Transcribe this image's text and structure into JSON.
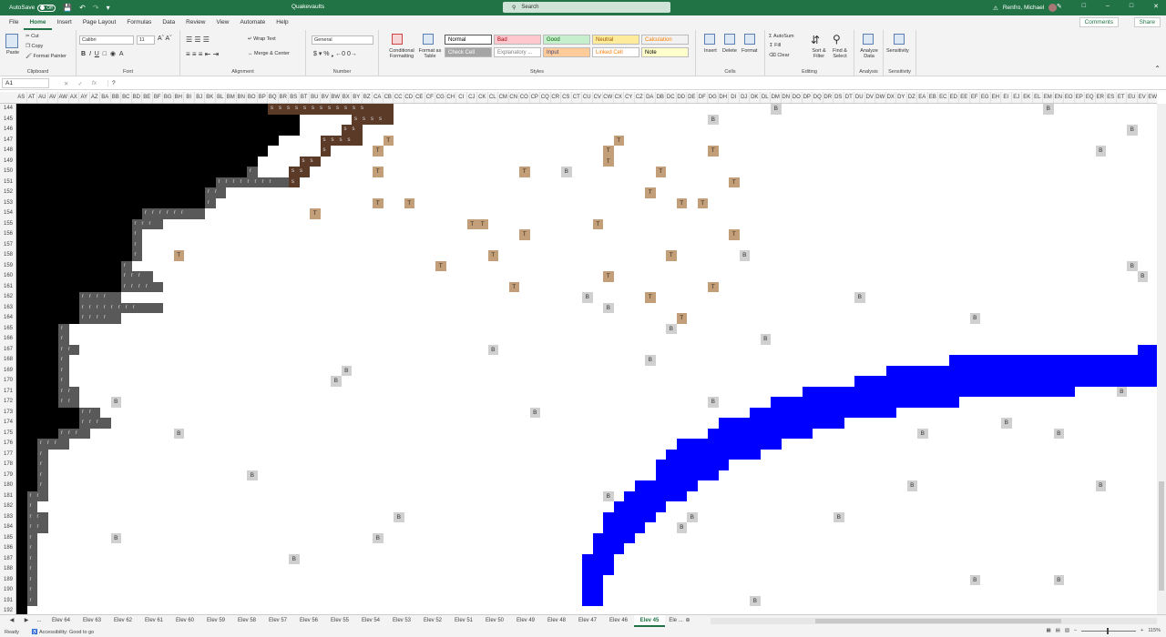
{
  "titlebar": {
    "autosave_label": "AutoSave",
    "autosave_state": "Off",
    "doc_title": "Quakevaults",
    "search_placeholder": "Search",
    "user_name": "Renfro, Michael"
  },
  "tabs": [
    "File",
    "Home",
    "Insert",
    "Page Layout",
    "Formulas",
    "Data",
    "Review",
    "View",
    "Automate",
    "Help"
  ],
  "active_tab": "Home",
  "ribbon_actions": {
    "comments": "Comments",
    "share": "Share"
  },
  "ribbon": {
    "clipboard": {
      "label": "Clipboard",
      "paste": "Paste",
      "cut": "Cut",
      "copy": "Copy",
      "format_painter": "Format Painter"
    },
    "font": {
      "label": "Font",
      "name": "Calibri",
      "size": "11"
    },
    "alignment": {
      "label": "Alignment",
      "wrap": "Wrap Text",
      "merge": "Merge & Center"
    },
    "number": {
      "label": "Number",
      "format": "General"
    },
    "styles": {
      "label": "Styles",
      "conditional": "Conditional Formatting",
      "format_table": "Format as Table",
      "cells": [
        {
          "text": "Normal",
          "bg": "#ffffff",
          "fg": "#000000"
        },
        {
          "text": "Bad",
          "bg": "#ffc7ce",
          "fg": "#9c0006"
        },
        {
          "text": "Good",
          "bg": "#c6efce",
          "fg": "#006100"
        },
        {
          "text": "Neutral",
          "bg": "#ffeb9c",
          "fg": "#9c5700"
        },
        {
          "text": "Calculation",
          "bg": "#f2f2f2",
          "fg": "#fa7d00"
        },
        {
          "text": "Check Cell",
          "bg": "#a5a5a5",
          "fg": "#ffffff"
        },
        {
          "text": "Explanatory ...",
          "bg": "#ffffff",
          "fg": "#7f7f7f"
        },
        {
          "text": "Input",
          "bg": "#ffcc99",
          "fg": "#3f3f76"
        },
        {
          "text": "Linked Cell",
          "bg": "#ffffff",
          "fg": "#fa7d00"
        },
        {
          "text": "Note",
          "bg": "#ffffcc",
          "fg": "#000000"
        }
      ]
    },
    "cells": {
      "label": "Cells",
      "insert": "Insert",
      "delete": "Delete",
      "format": "Format"
    },
    "editing": {
      "label": "Editing",
      "autosum": "AutoSum",
      "fill": "Fill",
      "clear": "Clear",
      "sort": "Sort & Filter",
      "find": "Find & Select"
    },
    "analysis": {
      "label": "Analysis",
      "analyze": "Analyze Data"
    },
    "sensitivity": {
      "label": "Sensitivity",
      "btn": "Sensitivity"
    }
  },
  "formula_bar": {
    "name_box": "A1",
    "fx": "fx",
    "value": "?"
  },
  "columns": [
    "AS",
    "AT",
    "AU",
    "AV",
    "AW",
    "AX",
    "AY",
    "AZ",
    "BA",
    "BB",
    "BC",
    "BD",
    "BE",
    "BF",
    "BG",
    "BH",
    "BI",
    "BJ",
    "BK",
    "BL",
    "BM",
    "BN",
    "BO",
    "BP",
    "BQ",
    "BR",
    "BS",
    "BT",
    "BU",
    "BV",
    "BW",
    "BX",
    "BY",
    "BZ",
    "CA",
    "CB",
    "CC",
    "CD",
    "CE",
    "CF",
    "CG",
    "CH",
    "CI",
    "CJ",
    "CK",
    "CL",
    "CM",
    "CN",
    "CO",
    "CP",
    "CQ",
    "CR",
    "CS",
    "CT",
    "CU",
    "CV",
    "CW",
    "CX",
    "CY",
    "CZ",
    "DA",
    "DB",
    "DC",
    "DD",
    "DE",
    "DF",
    "DG",
    "DH",
    "DI",
    "DJ",
    "DK",
    "DL",
    "DM",
    "DN",
    "DO",
    "DP",
    "DQ",
    "DR",
    "DS",
    "DT",
    "DU",
    "DV",
    "DW",
    "DX",
    "DY",
    "DZ",
    "EA",
    "EB",
    "EC",
    "ED",
    "EE",
    "EF",
    "EG",
    "EH",
    "EI",
    "EJ",
    "EK",
    "EL",
    "EM",
    "EN",
    "EO",
    "EP",
    "EQ",
    "ER",
    "ES",
    "ET",
    "EU",
    "EV",
    "EW"
  ],
  "rows": [
    144,
    145,
    146,
    147,
    148,
    149,
    150,
    151,
    152,
    153,
    154,
    155,
    156,
    157,
    158,
    159,
    160,
    161,
    162,
    163,
    164,
    165,
    166,
    167,
    168,
    169,
    170,
    171,
    172,
    173,
    174,
    175,
    176,
    177,
    178,
    179,
    180,
    181,
    182,
    183,
    184,
    185,
    186,
    187,
    188,
    189,
    190,
    191,
    192
  ],
  "cell_colors": {
    "black": "#000000",
    "rock": "#595959",
    "dirt": "#5c3a28",
    "water": "#0000ff",
    "treasure": "#c29e79",
    "block": "#d0d0d0"
  },
  "terrain": {
    "black_edge": [
      28,
      27,
      27,
      25,
      24,
      23,
      22,
      19,
      18,
      18,
      12,
      11,
      11,
      11,
      11,
      10,
      10,
      10,
      6,
      6,
      6,
      4,
      4,
      4,
      4,
      4,
      4,
      4,
      4,
      6,
      6,
      4,
      2,
      2,
      2,
      2,
      2,
      1,
      1,
      1,
      1,
      1,
      1,
      1,
      1,
      1,
      1,
      1,
      1
    ],
    "rock_width": [
      0,
      0,
      0,
      0,
      0,
      0,
      1,
      8,
      2,
      1,
      6,
      3,
      1,
      1,
      1,
      1,
      3,
      4,
      4,
      8,
      4,
      1,
      1,
      2,
      1,
      1,
      1,
      2,
      2,
      2,
      3,
      3,
      3,
      1,
      1,
      1,
      1,
      2,
      1,
      2,
      2,
      1,
      1,
      1,
      1,
      1,
      1,
      1,
      0
    ],
    "dirt_start": [
      24,
      32,
      31,
      29,
      29,
      27,
      26,
      26,
      0,
      0,
      0,
      0,
      0,
      0,
      0,
      0,
      0,
      0,
      0,
      0,
      0,
      0,
      0,
      0,
      0,
      0,
      0,
      0,
      0,
      0,
      0,
      0,
      0,
      0,
      0,
      0,
      0,
      0,
      0,
      0,
      0,
      0,
      0,
      0,
      0,
      0,
      0,
      0,
      0
    ],
    "dirt_end": [
      36,
      36,
      33,
      33,
      30,
      29,
      28,
      27,
      0,
      0,
      0,
      0,
      0,
      0,
      0,
      0,
      0,
      0,
      0,
      0,
      0,
      0,
      0,
      0,
      0,
      0,
      0,
      0,
      0,
      0,
      0,
      0,
      0,
      0,
      0,
      0,
      0,
      0,
      0,
      0,
      0,
      0,
      0,
      0,
      0,
      0,
      0,
      0,
      0
    ],
    "water_start": [
      0,
      0,
      0,
      0,
      0,
      0,
      0,
      0,
      0,
      0,
      0,
      0,
      0,
      0,
      0,
      0,
      0,
      0,
      0,
      0,
      0,
      0,
      0,
      107,
      89,
      83,
      80,
      75,
      72,
      70,
      67,
      66,
      63,
      62,
      61,
      61,
      59,
      58,
      57,
      56,
      56,
      55,
      55,
      54,
      54,
      54,
      54,
      54,
      0
    ],
    "water_end": [
      0,
      0,
      0,
      0,
      0,
      0,
      0,
      0,
      0,
      0,
      0,
      0,
      0,
      0,
      0,
      0,
      0,
      0,
      0,
      0,
      0,
      0,
      0,
      109,
      109,
      109,
      109,
      101,
      90,
      84,
      79,
      76,
      73,
      71,
      68,
      67,
      65,
      64,
      62,
      61,
      60,
      59,
      58,
      57,
      57,
      56,
      56,
      56,
      0
    ],
    "items": [
      [
        0,
        72,
        "B"
      ],
      [
        0,
        98,
        "B"
      ],
      [
        1,
        66,
        "B"
      ],
      [
        2,
        106,
        "B"
      ],
      [
        3,
        35,
        "T"
      ],
      [
        3,
        57,
        "T"
      ],
      [
        4,
        34,
        "T"
      ],
      [
        4,
        56,
        "T"
      ],
      [
        4,
        66,
        "T"
      ],
      [
        4,
        103,
        "B"
      ],
      [
        5,
        56,
        "T"
      ],
      [
        6,
        34,
        "T"
      ],
      [
        6,
        48,
        "T"
      ],
      [
        6,
        52,
        "B"
      ],
      [
        6,
        61,
        "T"
      ],
      [
        7,
        68,
        "T"
      ],
      [
        8,
        60,
        "T"
      ],
      [
        9,
        34,
        "T"
      ],
      [
        9,
        37,
        "T"
      ],
      [
        9,
        63,
        "T"
      ],
      [
        9,
        65,
        "T"
      ],
      [
        10,
        28,
        "T"
      ],
      [
        11,
        43,
        "T"
      ],
      [
        11,
        44,
        "T"
      ],
      [
        11,
        55,
        "T"
      ],
      [
        12,
        48,
        "T"
      ],
      [
        12,
        68,
        "T"
      ],
      [
        14,
        15,
        "T"
      ],
      [
        14,
        45,
        "T"
      ],
      [
        14,
        62,
        "T"
      ],
      [
        14,
        69,
        "B"
      ],
      [
        15,
        40,
        "T"
      ],
      [
        15,
        106,
        "B"
      ],
      [
        16,
        56,
        "T"
      ],
      [
        16,
        107,
        "B"
      ],
      [
        17,
        47,
        "T"
      ],
      [
        17,
        66,
        "T"
      ],
      [
        18,
        54,
        "B"
      ],
      [
        18,
        60,
        "T"
      ],
      [
        18,
        80,
        "B"
      ],
      [
        19,
        56,
        "B"
      ],
      [
        20,
        63,
        "T"
      ],
      [
        20,
        91,
        "B"
      ],
      [
        21,
        62,
        "B"
      ],
      [
        22,
        71,
        "B"
      ],
      [
        23,
        45,
        "B"
      ],
      [
        24,
        60,
        "B"
      ],
      [
        25,
        31,
        "B"
      ],
      [
        26,
        30,
        "B"
      ],
      [
        27,
        105,
        "B"
      ],
      [
        28,
        9,
        "B"
      ],
      [
        28,
        66,
        "B"
      ],
      [
        29,
        49,
        "B"
      ],
      [
        30,
        94,
        "B"
      ],
      [
        31,
        15,
        "B"
      ],
      [
        31,
        86,
        "B"
      ],
      [
        31,
        99,
        "B"
      ],
      [
        35,
        22,
        "B"
      ],
      [
        36,
        85,
        "B"
      ],
      [
        36,
        103,
        "B"
      ],
      [
        37,
        56,
        "B"
      ],
      [
        39,
        36,
        "B"
      ],
      [
        39,
        64,
        "B"
      ],
      [
        39,
        78,
        "B"
      ],
      [
        40,
        63,
        "B"
      ],
      [
        41,
        9,
        "B"
      ],
      [
        41,
        34,
        "B"
      ],
      [
        43,
        26,
        "B"
      ],
      [
        45,
        91,
        "B"
      ],
      [
        45,
        99,
        "B"
      ],
      [
        47,
        70,
        "B"
      ]
    ]
  },
  "sheet_tabs": [
    "Elev 64",
    "Elev 63",
    "Elev 62",
    "Elev 61",
    "Elev 60",
    "Elev 59",
    "Elev 58",
    "Elev 57",
    "Elev 56",
    "Elev 55",
    "Elev 54",
    "Elev 53",
    "Elev 52",
    "Elev 51",
    "Elev 50",
    "Elev 49",
    "Elev 48",
    "Elev 47",
    "Elev 46",
    "Elev 45",
    "Ele ..."
  ],
  "active_sheet": "Elev 45",
  "status": {
    "ready": "Ready",
    "accessibility": "Accessibility: Good to go",
    "zoom": "115%"
  }
}
